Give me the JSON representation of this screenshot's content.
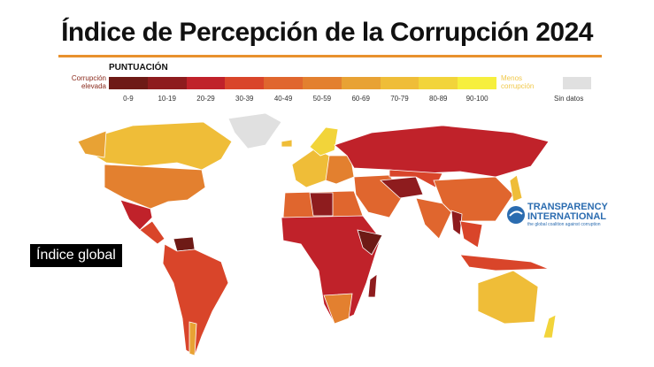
{
  "title": "Índice de Percepción de la Corrupción 2024",
  "legend": {
    "heading": "PUNTUACIÓN",
    "low_label": "Corrupción elevada",
    "high_label": "Menos corrupción",
    "ranges": [
      "0-9",
      "10-19",
      "20-29",
      "30-39",
      "40-49",
      "50-59",
      "60-69",
      "70-79",
      "80-89",
      "90-100"
    ],
    "colors": [
      "#6e1a16",
      "#8e1c1e",
      "#c0222a",
      "#d9452a",
      "#e0662e",
      "#e3802f",
      "#e8a234",
      "#efbd38",
      "#f2d43a",
      "#f6ef3e"
    ],
    "no_data_label": "Sin datos",
    "no_data_color": "#e0e0e0"
  },
  "badge": "Índice global",
  "logo": {
    "line1": "TRANSPARENCY",
    "line2": "INTERNATIONAL",
    "tagline": "the global coalition against corruption"
  }
}
